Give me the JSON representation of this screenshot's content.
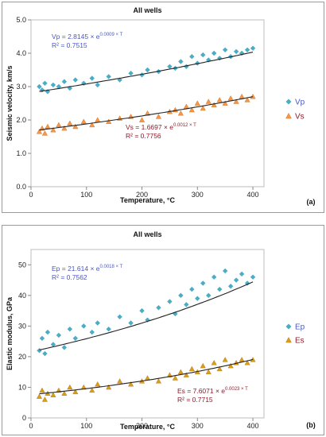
{
  "chart_data": [
    {
      "type": "scatter",
      "title": "All wells",
      "xlabel": "Temperature, °C",
      "ylabel": "Seismic velocity, km/s",
      "panel_label": "(a)",
      "xlim": [
        0,
        420
      ],
      "ylim": [
        0,
        5
      ],
      "xticks": [
        "0",
        "100",
        "200",
        "300",
        "400"
      ],
      "yticks": [
        "0.0",
        "1.0",
        "2.0",
        "3.0",
        "4.0",
        "5.0"
      ],
      "legend_position": "right",
      "series": [
        {
          "name": "Vp",
          "marker": "diamond",
          "color": "#4bacc6",
          "fit_color": "#4a58c2",
          "equation_main": "Vp = 2.8145 × e",
          "equation_exp": "0.0009 × T",
          "r2_label": "R² = 0.7515",
          "fit": {
            "a": 2.8145,
            "b": 0.0009
          },
          "x": [
            15,
            20,
            25,
            30,
            40,
            50,
            60,
            70,
            80,
            95,
            110,
            120,
            140,
            160,
            180,
            200,
            210,
            230,
            250,
            260,
            270,
            280,
            290,
            300,
            310,
            320,
            330,
            340,
            350,
            360,
            370,
            380,
            390,
            400
          ],
          "y": [
            3.0,
            2.9,
            3.1,
            2.85,
            3.05,
            3.0,
            3.15,
            2.95,
            3.2,
            3.1,
            3.25,
            3.05,
            3.3,
            3.2,
            3.4,
            3.35,
            3.5,
            3.45,
            3.6,
            3.55,
            3.75,
            3.6,
            3.9,
            3.7,
            3.95,
            3.8,
            4.0,
            3.85,
            4.1,
            3.9,
            4.05,
            4.0,
            4.1,
            4.15
          ]
        },
        {
          "name": "Vs",
          "marker": "triangle",
          "color": "#f79646",
          "fit_color": "#8b1c2b",
          "equation_main": "Vs = 1.6697 × e",
          "equation_exp": "0.0012 × T",
          "r2_label": "R² = 0.7756",
          "fit": {
            "a": 1.6697,
            "b": 0.0012
          },
          "x": [
            15,
            20,
            25,
            30,
            40,
            50,
            60,
            70,
            80,
            95,
            110,
            120,
            140,
            160,
            180,
            200,
            210,
            230,
            250,
            260,
            270,
            280,
            290,
            300,
            310,
            320,
            330,
            340,
            350,
            360,
            370,
            380,
            390,
            400
          ],
          "y": [
            1.65,
            1.75,
            1.6,
            1.8,
            1.7,
            1.85,
            1.75,
            1.9,
            1.8,
            1.95,
            1.85,
            2.0,
            1.95,
            2.05,
            2.1,
            2.0,
            2.2,
            2.1,
            2.25,
            2.3,
            2.2,
            2.4,
            2.3,
            2.5,
            2.35,
            2.55,
            2.45,
            2.6,
            2.5,
            2.65,
            2.55,
            2.7,
            2.6,
            2.7
          ]
        }
      ]
    },
    {
      "type": "scatter",
      "title": "All wells",
      "xlabel": "Temperature, °C",
      "ylabel": "Elastic modulus, GPa",
      "panel_label": "(b)",
      "xlim": [
        0,
        420
      ],
      "ylim": [
        0,
        55
      ],
      "xticks": [
        "0",
        "100",
        "200",
        "300",
        "400"
      ],
      "yticks": [
        "0",
        "10",
        "20",
        "30",
        "40",
        "50"
      ],
      "legend_position": "right",
      "series": [
        {
          "name": "Ep",
          "marker": "diamond",
          "color": "#4bacc6",
          "fit_color": "#4a58c2",
          "equation_main": "Ep = 21.614 × e",
          "equation_exp": "0.0018 × T",
          "r2_label": "R² = 0.7562",
          "fit": {
            "a": 21.614,
            "b": 0.0018
          },
          "x": [
            15,
            20,
            25,
            30,
            40,
            50,
            60,
            70,
            80,
            95,
            110,
            120,
            140,
            160,
            180,
            200,
            210,
            230,
            250,
            260,
            270,
            280,
            290,
            300,
            310,
            320,
            330,
            340,
            350,
            360,
            370,
            380,
            390,
            400
          ],
          "y": [
            22,
            26,
            21,
            28,
            24,
            27,
            23,
            29,
            26,
            30,
            28,
            31,
            29,
            33,
            31,
            35,
            32,
            36,
            38,
            34,
            40,
            37,
            42,
            39,
            44,
            40,
            46,
            42,
            48,
            43,
            45,
            47,
            44,
            46
          ]
        },
        {
          "name": "Es",
          "marker": "triangle",
          "color": "#d4a017",
          "fit_color": "#8b1c2b",
          "equation_main": "Es = 7.6071 × e",
          "equation_exp": "0.0023 × T",
          "r2_label": "R² = 0.7715",
          "fit": {
            "a": 7.6071,
            "b": 0.0023
          },
          "x": [
            15,
            20,
            25,
            30,
            40,
            50,
            60,
            70,
            80,
            95,
            110,
            120,
            140,
            160,
            180,
            200,
            210,
            230,
            250,
            260,
            270,
            280,
            290,
            300,
            310,
            320,
            330,
            340,
            350,
            360,
            370,
            380,
            390,
            400
          ],
          "y": [
            7,
            9,
            6,
            8,
            7.5,
            9,
            8,
            10,
            8.5,
            10,
            9,
            11,
            10,
            12,
            11,
            12,
            13,
            12,
            14,
            13,
            15,
            14,
            16,
            15,
            17,
            15,
            18,
            16,
            19,
            17,
            18,
            19,
            18,
            19
          ]
        }
      ]
    }
  ]
}
